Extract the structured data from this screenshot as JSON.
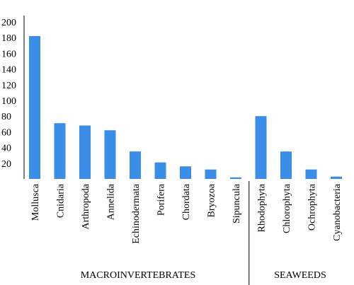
{
  "chart_data": {
    "type": "bar",
    "title": "",
    "xlabel": "",
    "ylabel": "",
    "ylim": [
      0,
      200
    ],
    "yticks": [
      20,
      40,
      60,
      80,
      100,
      120,
      140,
      160,
      180,
      200
    ],
    "grid": false,
    "bar_color": "#3b8ee8",
    "categories": [
      "Mollusca",
      "Cnidaria",
      "Arthropoda",
      "Annelida",
      "Echinodermata",
      "Porifera",
      "Chordata",
      "Bryozoa",
      "Sipuncula",
      "Rhodophyta",
      "Chlorophyta",
      "Ochrophyta",
      "Cyanobacteria"
    ],
    "values": [
      182,
      71,
      68,
      62,
      35,
      21,
      16,
      12,
      2,
      80,
      35,
      12,
      3
    ],
    "groups": [
      {
        "label": "MACROINVERTEBRATES",
        "categories": [
          "Mollusca",
          "Cnidaria",
          "Arthropoda",
          "Annelida",
          "Echinodermata",
          "Porifera",
          "Chordata",
          "Bryozoa",
          "Sipuncula"
        ]
      },
      {
        "label": "SEAWEEDS",
        "categories": [
          "Rhodophyta",
          "Chlorophyta",
          "Ochrophyta",
          "Cyanobacteria"
        ]
      }
    ]
  }
}
